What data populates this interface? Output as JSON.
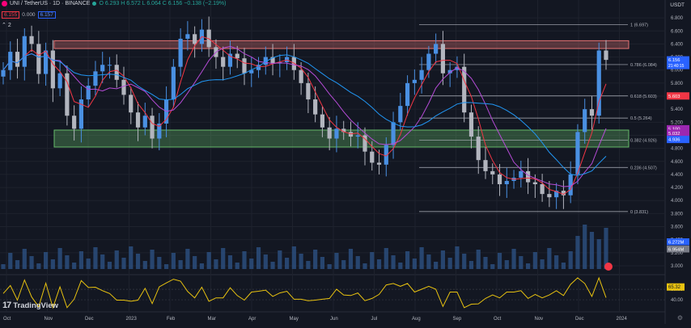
{
  "header": {
    "title": "UNI / TetherUS · 1D · BINANCE",
    "ohlc": "O 6.293 H 6.572 L 6.064 C 6.156 −0.138 (−2.19%)",
    "sell_price": "6.155",
    "spread": "0.000",
    "buy_price": "6.157",
    "indicator_toggle": "2"
  },
  "currency_label": "USDT",
  "logo_text": "TradingView",
  "chart_data": {
    "type": "candlestick",
    "price_axis_ticks": [
      "6.800",
      "6.600",
      "6.400",
      "6.200",
      "6.000",
      "5.800",
      "5.600",
      "5.400",
      "5.200",
      "5.000",
      "4.800",
      "4.600",
      "4.400",
      "4.200",
      "4.000",
      "3.800",
      "3.600",
      "3.400",
      "3.200",
      "3.000"
    ],
    "time_axis_labels": [
      "Oct",
      "Nov",
      "Dec",
      "2023",
      "Feb",
      "Mar",
      "Apr",
      "May",
      "Jun",
      "Jul",
      "Aug",
      "Sep",
      "Oct",
      "Nov",
      "Dec",
      "2024"
    ],
    "price_range": [
      2.95,
      6.95
    ],
    "fib_levels": [
      {
        "label": "1 (6.697)",
        "value": 6.697
      },
      {
        "label": "0.786 (6.084)",
        "value": 6.084
      },
      {
        "label": "0.618 (5.603)",
        "value": 5.603
      },
      {
        "label": "0.5 (5.264)",
        "value": 5.264
      },
      {
        "label": "0.382 (4.926)",
        "value": 4.926
      },
      {
        "label": "0.236 (4.507)",
        "value": 4.507
      },
      {
        "label": "0 (3.831)",
        "value": 3.831
      }
    ],
    "zones": [
      {
        "name": "resistance",
        "top": 6.45,
        "bottom": 6.33,
        "color": "#e57373"
      },
      {
        "name": "support",
        "top": 5.08,
        "bottom": 4.82,
        "color": "#66bb6a"
      }
    ],
    "price_labels": [
      {
        "text": "6.156",
        "sub": "21:40:15",
        "value": 6.156,
        "color": "#2962ff"
      },
      {
        "text": "5.603",
        "value": 5.603,
        "color": "#f23645"
      },
      {
        "text": "5.100",
        "value": 5.1,
        "color": "#9c27b0"
      },
      {
        "text": "5.032",
        "value": 5.032,
        "color": "#9c27b0"
      },
      {
        "text": "4.936",
        "value": 4.936,
        "color": "#2962ff"
      }
    ],
    "volume_labels": [
      {
        "text": "6.272M",
        "color": "#2962ff"
      },
      {
        "text": "6.954M",
        "color": "#787b86"
      }
    ],
    "rsi": {
      "current_label": "65.32",
      "ticks": [
        "60.00",
        "40.00"
      ],
      "range": [
        20,
        85
      ],
      "color": "#e8c210"
    },
    "candles": [
      {
        "c": 6.0
      },
      {
        "c": 6.28
      },
      {
        "c": 6.05
      },
      {
        "c": 6.52
      },
      {
        "c": 6.4
      },
      {
        "c": 5.94
      },
      {
        "c": 6.3
      },
      {
        "c": 5.72
      },
      {
        "c": 5.95
      },
      {
        "c": 5.3
      },
      {
        "c": 5.1
      },
      {
        "c": 5.55
      },
      {
        "c": 5.76
      },
      {
        "c": 5.98
      },
      {
        "c": 6.08
      },
      {
        "c": 6.08
      },
      {
        "c": 5.85
      },
      {
        "c": 5.62
      },
      {
        "c": 5.35
      },
      {
        "c": 5.12
      },
      {
        "c": 5.3
      },
      {
        "c": 4.95
      },
      {
        "c": 5.18
      },
      {
        "c": 5.55
      },
      {
        "c": 6.05
      },
      {
        "c": 6.48
      },
      {
        "c": 6.55
      },
      {
        "c": 6.4
      },
      {
        "c": 6.62
      },
      {
        "c": 6.35
      },
      {
        "c": 6.2
      },
      {
        "c": 6.05
      },
      {
        "c": 6.25
      },
      {
        "c": 6.18
      },
      {
        "c": 5.95
      },
      {
        "c": 6.0
      },
      {
        "c": 6.08
      },
      {
        "c": 6.2
      },
      {
        "c": 6.1
      },
      {
        "c": 6.12
      },
      {
        "c": 6.2
      },
      {
        "c": 6.0
      },
      {
        "c": 5.8
      },
      {
        "c": 5.55
      },
      {
        "c": 5.32
      },
      {
        "c": 5.12
      },
      {
        "c": 4.95
      },
      {
        "c": 5.1
      },
      {
        "c": 5.05
      },
      {
        "c": 4.98
      },
      {
        "c": 5.0
      },
      {
        "c": 4.75
      },
      {
        "c": 4.58
      },
      {
        "c": 4.55
      },
      {
        "c": 4.85
      },
      {
        "c": 5.2
      },
      {
        "c": 5.45
      },
      {
        "c": 5.8
      },
      {
        "c": 5.85
      },
      {
        "c": 6.0
      },
      {
        "c": 6.25
      },
      {
        "c": 6.4
      },
      {
        "c": 5.95
      },
      {
        "c": 6.0
      },
      {
        "c": 6.05
      },
      {
        "c": 5.35
      },
      {
        "c": 4.98
      },
      {
        "c": 4.62
      },
      {
        "c": 4.45
      },
      {
        "c": 4.4
      },
      {
        "c": 4.25
      },
      {
        "c": 4.3
      },
      {
        "c": 4.35
      },
      {
        "c": 4.45
      },
      {
        "c": 4.28
      },
      {
        "c": 4.25
      },
      {
        "c": 4.1
      },
      {
        "c": 4.05
      },
      {
        "c": 4.15
      },
      {
        "c": 4.08
      },
      {
        "c": 4.4
      },
      {
        "c": 5.05
      },
      {
        "c": 5.4
      },
      {
        "c": 5.3
      },
      {
        "c": 6.3
      },
      {
        "c": 6.156
      }
    ]
  }
}
